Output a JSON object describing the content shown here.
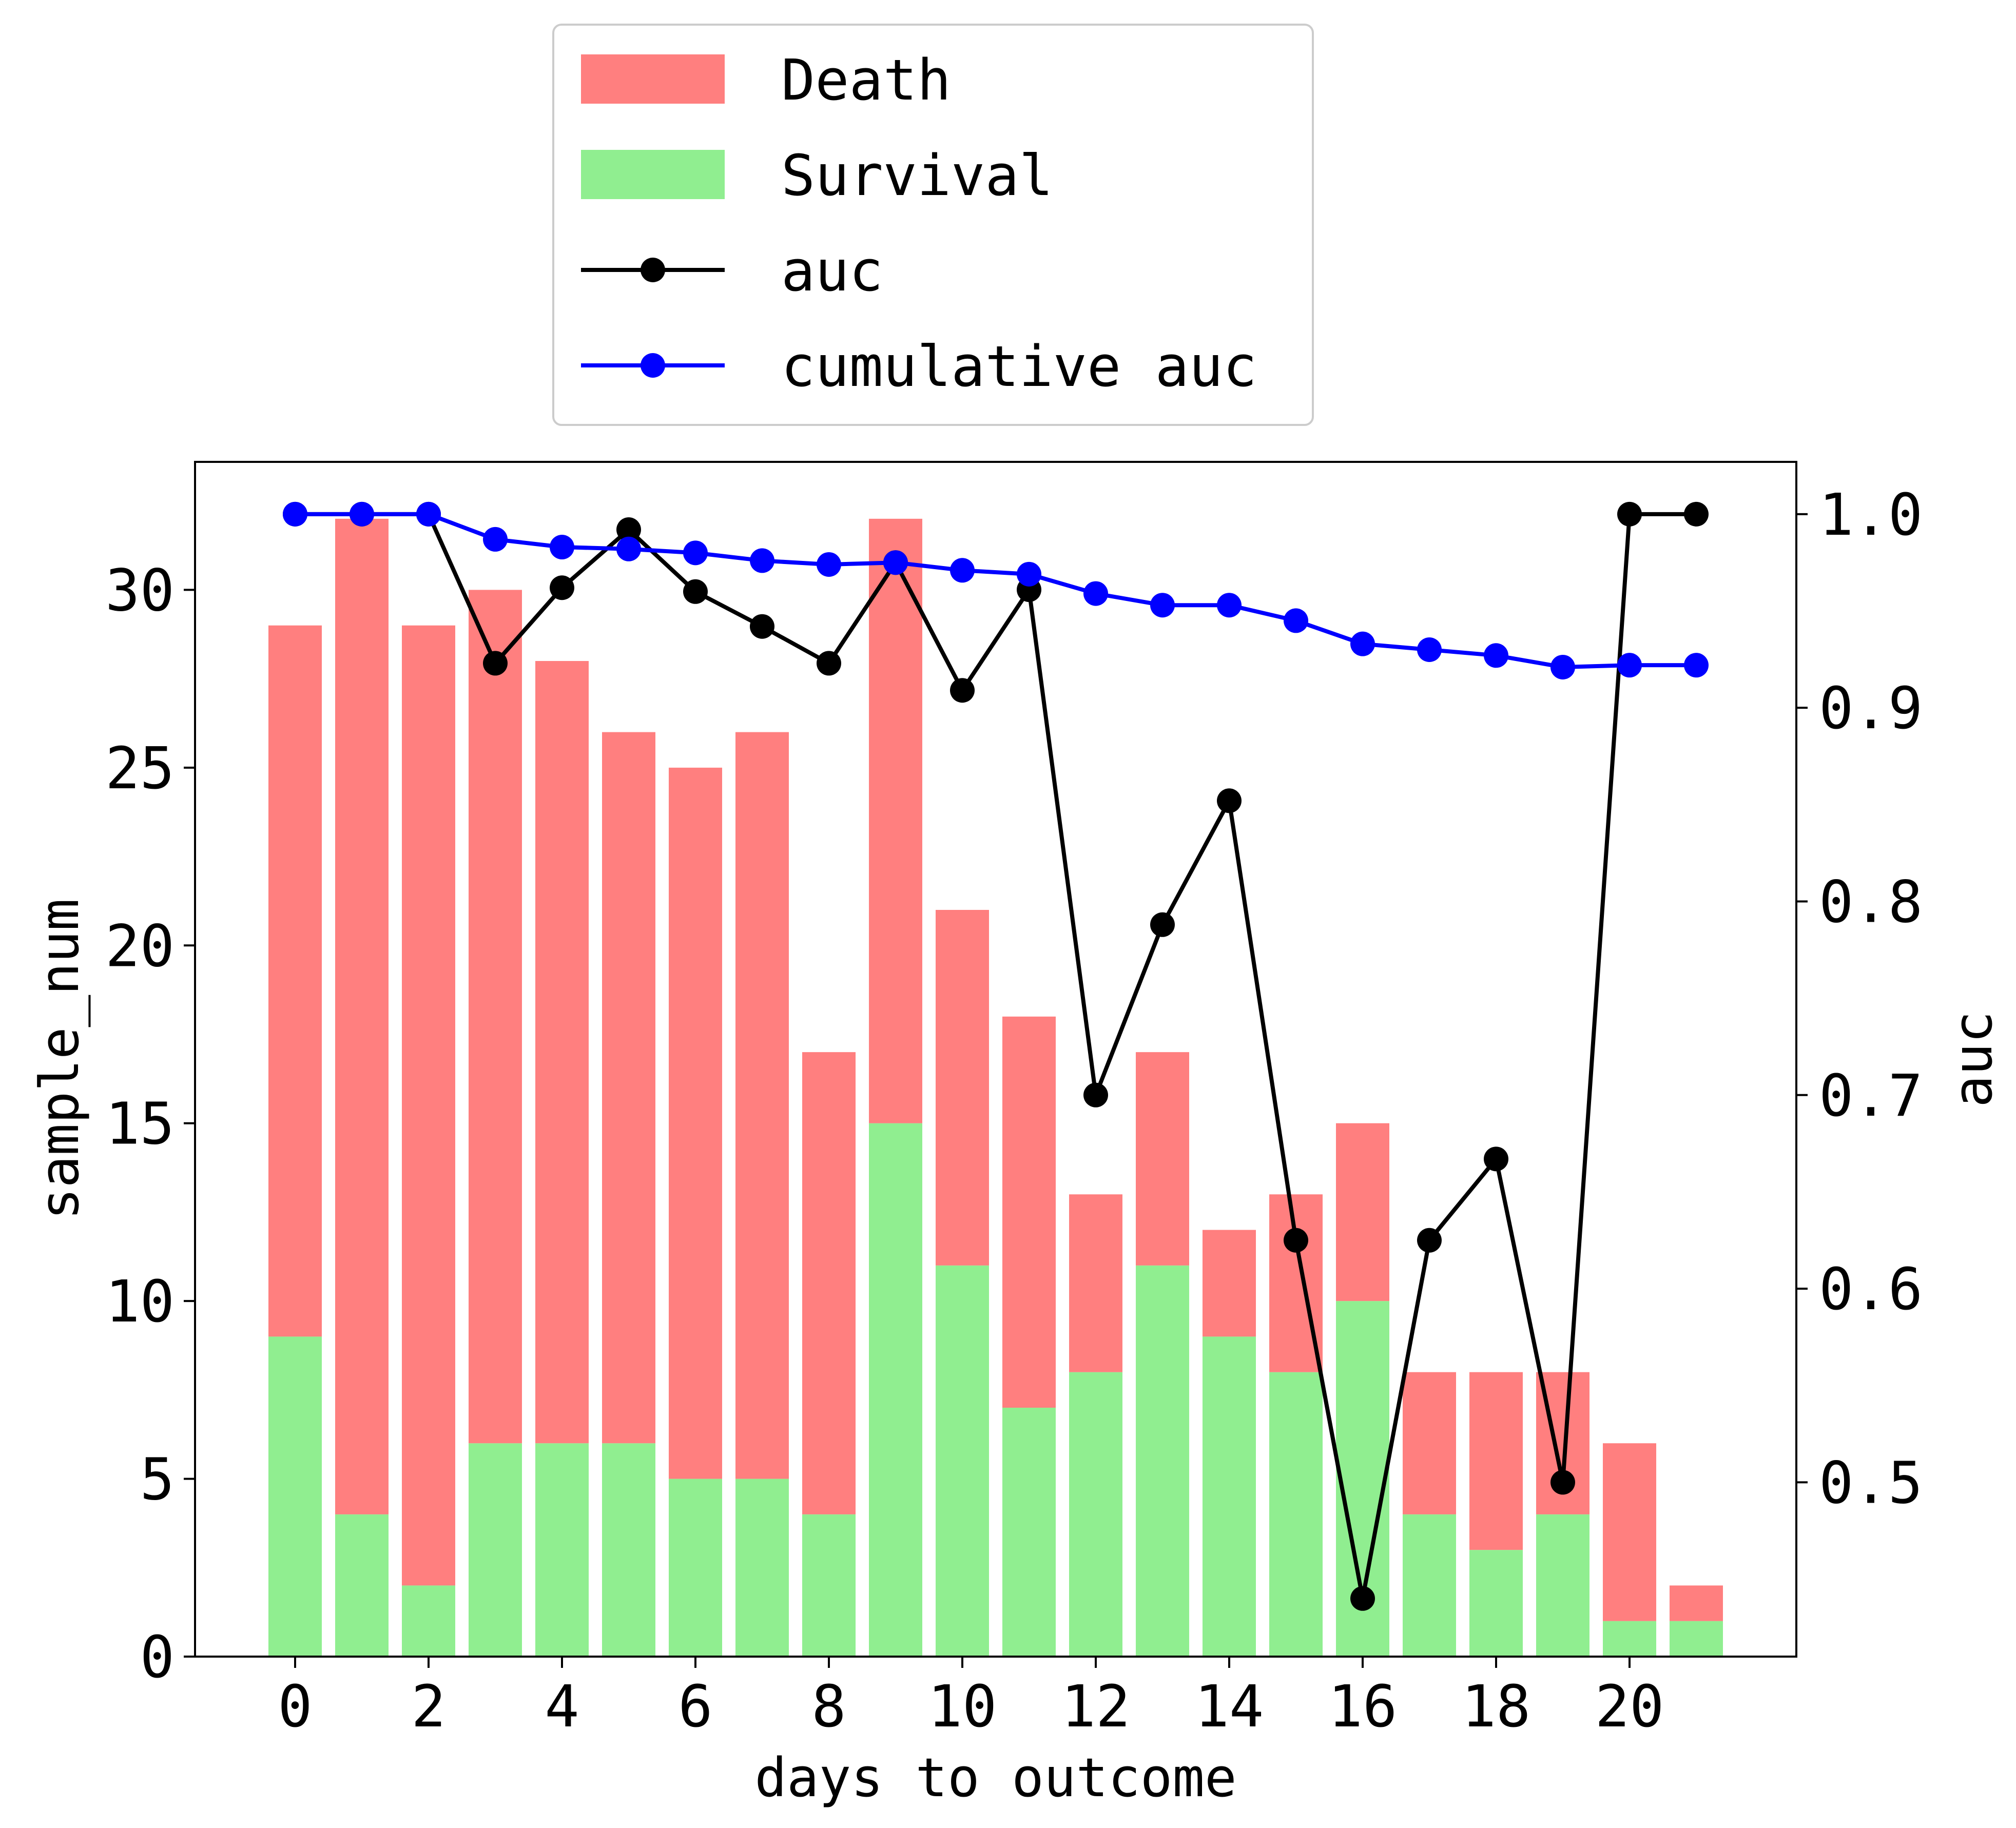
{
  "chart_data": {
    "type": "bar",
    "x": [
      0,
      1,
      2,
      3,
      4,
      5,
      6,
      7,
      8,
      9,
      10,
      11,
      12,
      13,
      14,
      15,
      16,
      17,
      18,
      19,
      20,
      21
    ],
    "xlabel": "days to outcome",
    "ylabel": "sample_num",
    "y2label": "auc",
    "xticks": [
      0,
      2,
      4,
      6,
      8,
      10,
      12,
      14,
      16,
      18,
      20
    ],
    "yticks": [
      0,
      5,
      10,
      15,
      20,
      25,
      30
    ],
    "y2ticks": [
      0.5,
      0.6,
      0.7,
      0.8,
      0.9,
      1.0
    ],
    "y2tick_labels": [
      "0.5",
      "0.6",
      "0.7",
      "0.8",
      "0.9",
      "1.0"
    ],
    "xlim": [
      -1.5,
      22.5
    ],
    "ylim": [
      0,
      33.6
    ],
    "y2lim": [
      0.41,
      1.027
    ],
    "bar_series": [
      {
        "name": "Survival",
        "color": "#90ee90",
        "values": [
          9,
          4,
          2,
          6,
          6,
          6,
          5,
          5,
          4,
          15,
          11,
          7,
          8,
          11,
          9,
          8,
          10,
          4,
          3,
          4,
          1,
          1
        ]
      },
      {
        "name": "Death",
        "color": "#ff7f7f",
        "values": [
          20,
          28,
          27,
          24,
          22,
          20,
          20,
          21,
          13,
          17,
          10,
          11,
          5,
          6,
          3,
          5,
          5,
          4,
          5,
          4,
          5,
          1
        ]
      }
    ],
    "line_series": [
      {
        "name": "auc",
        "color": "#000000",
        "values": [
          1.0,
          1.0,
          1.0,
          0.923,
          0.962,
          0.992,
          0.96,
          0.942,
          0.923,
          0.975,
          0.909,
          0.961,
          0.7,
          0.788,
          0.852,
          0.625,
          0.44,
          0.625,
          0.667,
          0.5,
          1.0,
          1.0
        ]
      },
      {
        "name": "cumulative auc",
        "color": "#0000ff",
        "values": [
          1.0,
          1.0,
          1.0,
          0.987,
          0.983,
          0.982,
          0.98,
          0.976,
          0.974,
          0.975,
          0.971,
          0.969,
          0.959,
          0.953,
          0.953,
          0.945,
          0.933,
          0.93,
          0.927,
          0.921,
          0.922,
          0.922
        ]
      }
    ],
    "legend": {
      "placement": "top-center-outside",
      "entries": [
        "Death",
        "Survival",
        "auc",
        "cumulative auc"
      ]
    },
    "grid": false
  }
}
